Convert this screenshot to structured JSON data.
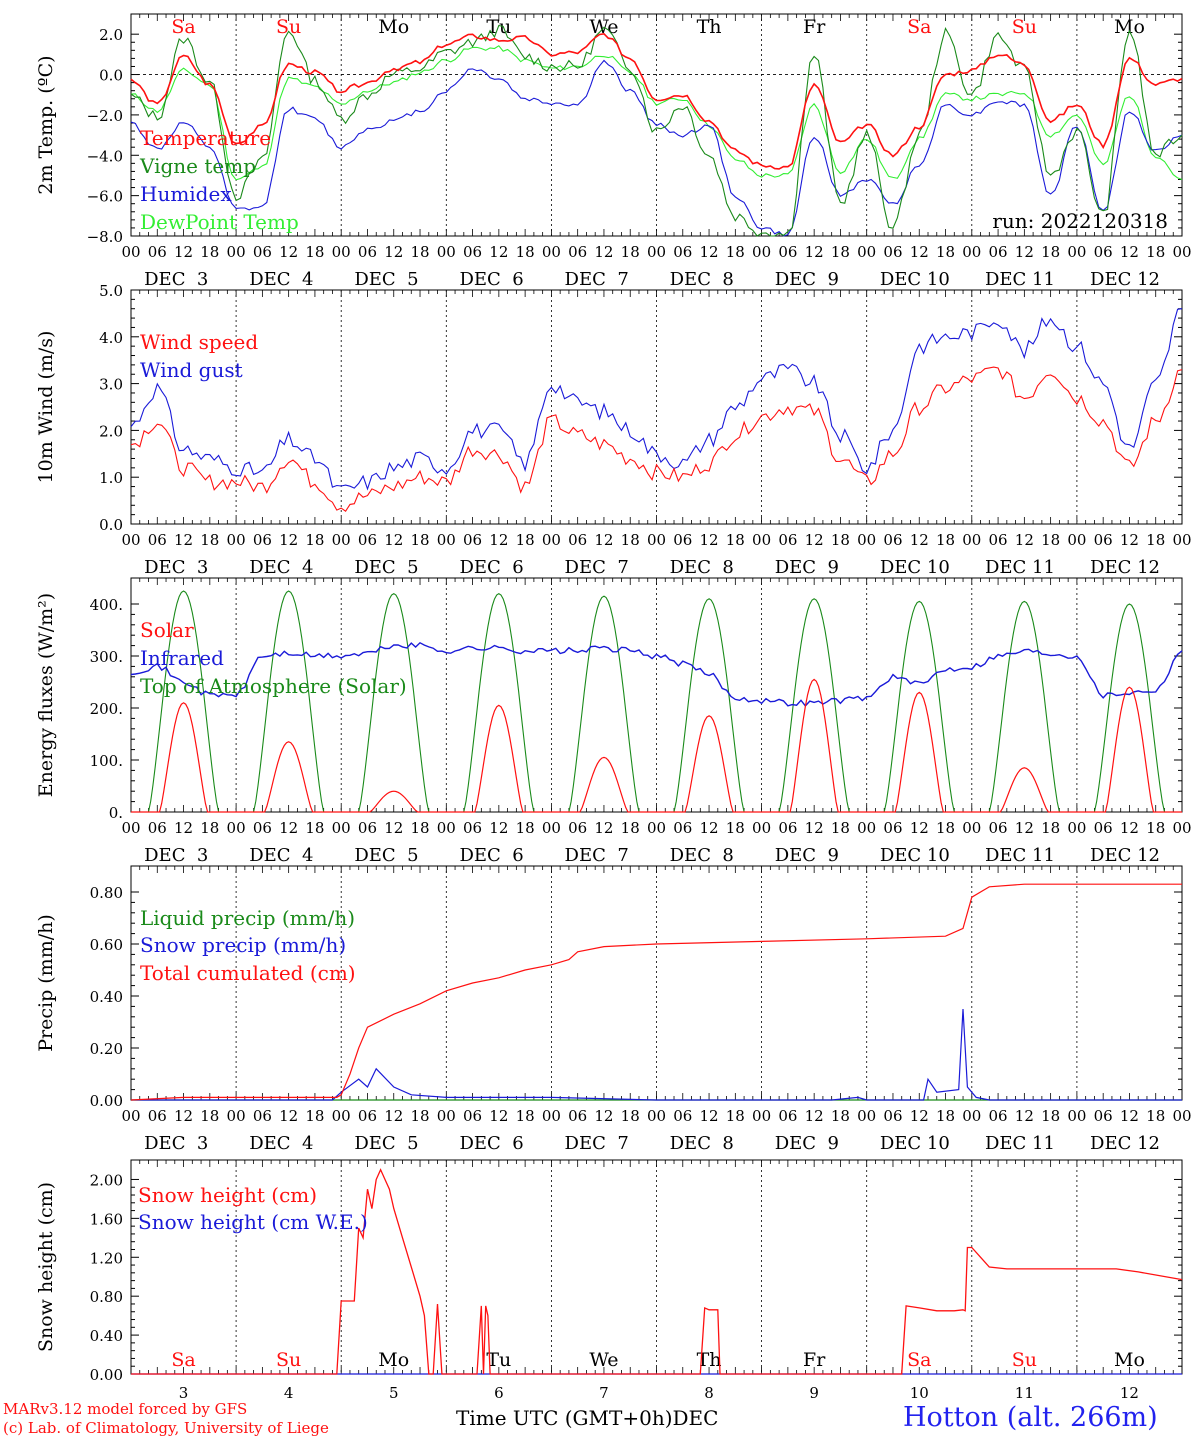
{
  "colors": {
    "red": "#ff1111",
    "green": "#1a8a1a",
    "blue": "#1a1ad8",
    "light_green": "#33ee33",
    "black": "#000000"
  },
  "hour_labels": [
    "00",
    "06",
    "12",
    "18"
  ],
  "date_labels": [
    "DEC  3",
    "DEC  4",
    "DEC  5",
    "DEC  6",
    "DEC  7",
    "DEC  8",
    "DEC  9",
    "DEC 10",
    "DEC 11",
    "DEC 12"
  ],
  "weekdays": [
    {
      "label": "Sa",
      "color": "#ff1111"
    },
    {
      "label": "Su",
      "color": "#ff1111"
    },
    {
      "label": "Mo",
      "color": "#000000"
    },
    {
      "label": "Tu",
      "color": "#000000"
    },
    {
      "label": "We",
      "color": "#000000"
    },
    {
      "label": "Th",
      "color": "#000000"
    },
    {
      "label": "Fr",
      "color": "#000000"
    },
    {
      "label": "Sa",
      "color": "#ff1111"
    },
    {
      "label": "Su",
      "color": "#ff1111"
    },
    {
      "label": "Mo",
      "color": "#000000"
    }
  ],
  "bottom_day_numbers": [
    "3",
    "4",
    "5",
    "6",
    "7",
    "8",
    "9",
    "10",
    "11",
    "12"
  ],
  "footer": {
    "model": "MARv3.12 model forced by GFS",
    "credit": "(c) Lab. of Climatology, University of Liege",
    "xlabel": "Time UTC (GMT+0h)",
    "month": "DEC",
    "station": "Hotton (alt. 266m)"
  },
  "run_label": "run: 2022120318",
  "chart_data": [
    {
      "type": "line",
      "ylabel": "2m Temp. (ºC)",
      "ylim": [
        -8,
        3
      ],
      "yticks": [
        2,
        0,
        -2,
        -4,
        -6,
        -8
      ],
      "ytick_labels": [
        "2.0",
        "0.0",
        "−2.0",
        "−4.0",
        "−6.0",
        "−8.0"
      ],
      "zero_line": true,
      "x": [
        0,
        6,
        12,
        18,
        24,
        30,
        36,
        42,
        48,
        54,
        60,
        66,
        72,
        78,
        84,
        90,
        96,
        102,
        108,
        114,
        120,
        126,
        132,
        138,
        144,
        150,
        156,
        162,
        168,
        174,
        180,
        186,
        192,
        198,
        204,
        210,
        216,
        222,
        228,
        234,
        240
      ],
      "series": [
        {
          "name": "Temperature",
          "color": "#ff1111",
          "values": [
            -0.3,
            -1.5,
            0.9,
            -0.5,
            -3.4,
            -2.6,
            0.5,
            0.1,
            -0.8,
            -0.4,
            0.3,
            0.6,
            1.5,
            1.9,
            1.7,
            1.8,
            1.0,
            1.1,
            2.0,
            0.8,
            -1.2,
            -1.0,
            -2.3,
            -3.8,
            -4.5,
            -4.6,
            -0.5,
            -3.4,
            -2.5,
            -4.0,
            -2.6,
            0.0,
            0.2,
            1.0,
            0.5,
            -2.3,
            -1.5,
            -3.5,
            0.8,
            -0.5,
            -0.2
          ]
        },
        {
          "name": "Vigne temp",
          "color": "#1a8a1a",
          "values": [
            -1.1,
            -2.1,
            1.8,
            -0.4,
            -6.0,
            -4.3,
            2.2,
            -0.3,
            -2.2,
            -1.0,
            0.0,
            0.3,
            1.1,
            1.6,
            2.2,
            0.9,
            0.4,
            0.4,
            2.2,
            0.4,
            -2.8,
            -1.5,
            -4.0,
            -7.0,
            -7.8,
            -7.9,
            1.0,
            -6.4,
            -3.0,
            -7.6,
            -3.0,
            2.0,
            -1.0,
            1.9,
            0.2,
            -5.0,
            -2.8,
            -7.0,
            2.2,
            -4.0,
            -3.0
          ]
        },
        {
          "name": "Humidex",
          "color": "#1a1ad8",
          "values": [
            -2.4,
            -3.7,
            -2.4,
            -3.6,
            -6.7,
            -6.6,
            -1.7,
            -2.2,
            -3.6,
            -2.7,
            -2.3,
            -1.8,
            -0.8,
            0.3,
            -0.2,
            -1.2,
            -1.4,
            -1.5,
            0.6,
            -0.8,
            -2.5,
            -3.0,
            -2.5,
            -6.0,
            -7.6,
            -8.0,
            -3.0,
            -6.0,
            -5.2,
            -6.4,
            -4.5,
            -1.5,
            -2.0,
            -1.3,
            -1.5,
            -6.0,
            -2.5,
            -6.8,
            -1.8,
            -3.8,
            -3.0
          ]
        },
        {
          "name": "DewPoint Temp",
          "color": "#33ee33",
          "values": [
            -1.0,
            -1.8,
            0.2,
            -0.5,
            -5.2,
            -4.6,
            -0.2,
            -0.6,
            -1.5,
            -0.8,
            -0.4,
            0.1,
            0.7,
            1.3,
            1.3,
            0.7,
            0.3,
            0.4,
            1.0,
            0.1,
            -1.4,
            -1.2,
            -2.5,
            -4.2,
            -5.0,
            -5.0,
            -1.5,
            -4.8,
            -3.2,
            -5.2,
            -3.2,
            -1.0,
            -1.2,
            -1.0,
            -0.9,
            -3.0,
            -2.0,
            -4.5,
            -1.0,
            -4.0,
            -5.2
          ]
        }
      ]
    },
    {
      "type": "line",
      "ylabel": "10m Wind (m/s)",
      "ylim": [
        0,
        5
      ],
      "yticks": [
        0,
        1,
        2,
        3,
        4,
        5
      ],
      "ytick_labels": [
        "0.0",
        "1.0",
        "2.0",
        "3.0",
        "4.0",
        "5.0"
      ],
      "x": [
        0,
        6,
        12,
        18,
        24,
        30,
        36,
        42,
        48,
        54,
        60,
        66,
        72,
        78,
        84,
        90,
        96,
        102,
        108,
        114,
        120,
        126,
        132,
        138,
        144,
        150,
        156,
        162,
        168,
        174,
        180,
        186,
        192,
        198,
        204,
        210,
        216,
        222,
        228,
        234,
        240
      ],
      "series": [
        {
          "name": "Wind speed",
          "color": "#ff1111",
          "values": [
            1.7,
            2.2,
            1.2,
            0.9,
            0.9,
            0.8,
            1.4,
            0.9,
            0.4,
            0.6,
            0.8,
            1.0,
            0.9,
            1.6,
            1.5,
            0.8,
            2.2,
            1.9,
            1.7,
            1.4,
            1.1,
            1.0,
            1.3,
            1.9,
            2.3,
            2.5,
            2.4,
            1.4,
            0.9,
            1.5,
            2.5,
            2.9,
            3.1,
            3.3,
            2.7,
            3.3,
            2.7,
            2.2,
            1.2,
            2.2,
            3.3
          ]
        },
        {
          "name": "Wind gust",
          "color": "#1a1ad8",
          "values": [
            2.1,
            2.9,
            1.6,
            1.4,
            1.2,
            1.1,
            1.8,
            1.4,
            0.7,
            0.9,
            1.2,
            1.4,
            1.2,
            2.0,
            2.0,
            1.3,
            3.0,
            2.6,
            2.4,
            2.0,
            1.5,
            1.3,
            1.8,
            2.5,
            3.1,
            3.3,
            3.0,
            1.9,
            1.2,
            2.0,
            3.8,
            4.0,
            4.1,
            4.4,
            3.7,
            4.4,
            3.8,
            3.0,
            1.6,
            3.0,
            4.6
          ]
        }
      ]
    },
    {
      "type": "line",
      "ylabel": "Energy fluxes (W/m²)",
      "ylim": [
        0,
        450
      ],
      "yticks": [
        0,
        100,
        200,
        300,
        400
      ],
      "ytick_labels": [
        "0.",
        "100.",
        "200.",
        "300.",
        "400."
      ],
      "x": [
        0,
        6,
        12,
        18,
        24,
        30,
        36,
        42,
        48,
        54,
        60,
        66,
        72,
        78,
        84,
        90,
        96,
        102,
        108,
        114,
        120,
        126,
        132,
        138,
        144,
        150,
        156,
        162,
        168,
        174,
        180,
        186,
        192,
        198,
        204,
        210,
        216,
        222,
        228,
        234,
        240
      ],
      "series": [
        {
          "name": "Solar",
          "color": "#ff1111",
          "peaks": [
            210,
            135,
            40,
            205,
            105,
            185,
            255,
            230,
            85,
            240
          ]
        },
        {
          "name": "Infrared",
          "color": "#1a1ad8",
          "values": [
            270,
            280,
            250,
            225,
            225,
            300,
            305,
            300,
            300,
            305,
            320,
            320,
            310,
            315,
            315,
            310,
            310,
            310,
            315,
            310,
            300,
            285,
            265,
            220,
            215,
            210,
            210,
            215,
            220,
            260,
            245,
            275,
            280,
            300,
            310,
            305,
            300,
            225,
            230,
            235,
            310
          ]
        },
        {
          "name": "Top of Atmosphere (Solar)",
          "color": "#1a8a1a",
          "peaks": [
            425,
            425,
            420,
            420,
            415,
            410,
            410,
            405,
            405,
            400
          ]
        }
      ]
    },
    {
      "type": "line",
      "ylabel": "Precip (mm/h)",
      "ylim": [
        0,
        0.9
      ],
      "yticks": [
        0,
        0.2,
        0.4,
        0.6,
        0.8
      ],
      "ytick_labels": [
        "0.00",
        "0.20",
        "0.40",
        "0.60",
        "0.80"
      ],
      "x_liquid": [],
      "series": [
        {
          "name": "Liquid precip (mm/h)",
          "color": "#1a8a1a",
          "x": [
            0,
            240
          ],
          "values": [
            0,
            0
          ]
        },
        {
          "name": "Snow precip (mm/h)",
          "color": "#1a1ad8",
          "x": [
            0,
            46,
            48,
            52,
            54,
            56,
            60,
            64,
            72,
            96,
            120,
            160,
            166,
            168,
            181,
            182,
            184,
            189,
            190,
            191,
            193,
            196,
            240
          ],
          "values": [
            0,
            0,
            0.03,
            0.08,
            0.05,
            0.12,
            0.05,
            0.02,
            0.01,
            0.01,
            0,
            0,
            0.01,
            0,
            0,
            0.08,
            0.03,
            0.04,
            0.35,
            0.05,
            0.01,
            0,
            0
          ]
        },
        {
          "name": "Total cumulated (cm)",
          "color": "#ff1111",
          "x": [
            0,
            12,
            24,
            47,
            48,
            50,
            52,
            54,
            60,
            66,
            72,
            78,
            84,
            90,
            96,
            100,
            102,
            108,
            120,
            144,
            168,
            186,
            190,
            192,
            196,
            204,
            216,
            240
          ],
          "values": [
            0,
            0.01,
            0.01,
            0.01,
            0.02,
            0.1,
            0.2,
            0.28,
            0.33,
            0.37,
            0.42,
            0.45,
            0.47,
            0.5,
            0.52,
            0.54,
            0.57,
            0.59,
            0.6,
            0.61,
            0.62,
            0.63,
            0.66,
            0.78,
            0.82,
            0.83,
            0.83,
            0.83
          ]
        }
      ]
    },
    {
      "type": "line",
      "ylabel": "Snow height (cm)",
      "ylim": [
        0,
        2.2
      ],
      "yticks": [
        0,
        0.4,
        0.8,
        1.2,
        1.6,
        2.0
      ],
      "ytick_labels": [
        "0.00",
        "0.40",
        "0.80",
        "1.20",
        "1.60",
        "2.00"
      ],
      "series": [
        {
          "name": "Snow height (cm)",
          "color": "#ff1111",
          "x": [
            0,
            47,
            48,
            49,
            51,
            52,
            53,
            54,
            55,
            56,
            57,
            58,
            59,
            60,
            62,
            64,
            66,
            67,
            68,
            69,
            70,
            71,
            72,
            73,
            74,
            75,
            79,
            80,
            80.5,
            81,
            81.5,
            82,
            83,
            84,
            130,
            131,
            132,
            134,
            134.5,
            135,
            176,
            177,
            180,
            184,
            188,
            190,
            190.5,
            191,
            192,
            194,
            196,
            200,
            210,
            220,
            225,
            230,
            240
          ],
          "values": [
            0,
            0,
            0.75,
            0.75,
            0.75,
            1.5,
            1.4,
            1.9,
            1.7,
            2.0,
            2.1,
            2.0,
            1.9,
            1.7,
            1.4,
            1.1,
            0.8,
            0.6,
            0,
            0,
            0.72,
            0,
            0,
            0,
            0,
            0,
            0,
            0.7,
            0,
            0.7,
            0.6,
            0,
            0,
            0,
            0,
            0.68,
            0.66,
            0.66,
            0,
            0,
            0,
            0.7,
            0.68,
            0.65,
            0.65,
            0.66,
            0.65,
            1.3,
            1.3,
            1.2,
            1.1,
            1.08,
            1.08,
            1.08,
            1.08,
            1.05,
            0.97
          ]
        },
        {
          "name": "Snow height (cm W.E.)",
          "color": "#1a1ad8",
          "x": [
            0,
            240
          ],
          "values": [
            0,
            0
          ]
        }
      ]
    }
  ]
}
